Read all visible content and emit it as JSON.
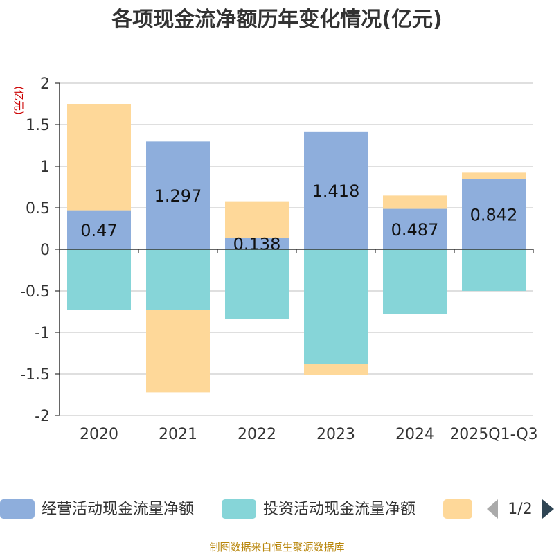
{
  "chart_data": {
    "type": "bar",
    "stacked": true,
    "title": "各项现金流净额历年变化情况(亿元)",
    "unit_label": "(亿元)",
    "categories": [
      "2020",
      "2021",
      "2022",
      "2023",
      "2024",
      "2025Q1-Q3"
    ],
    "ylim": [
      -2,
      2
    ],
    "yticks": [
      2,
      1.5,
      1,
      0.5,
      0,
      -0.5,
      -1,
      -1.5,
      -2
    ],
    "grid": true,
    "legend_position": "bottom",
    "series": [
      {
        "name": "经营活动现金流量净额",
        "color": "#8eaedc",
        "values": [
          0.47,
          1.297,
          0.138,
          1.418,
          0.487,
          0.842
        ],
        "labels": [
          "0.47",
          "1.297",
          "0.138",
          "1.418",
          "0.487",
          "0.842"
        ]
      },
      {
        "name": "投资活动现金流量净额",
        "color": "#86d5d8",
        "values": [
          -0.73,
          -0.73,
          -0.84,
          -1.38,
          -0.78,
          -0.5
        ]
      },
      {
        "color": "#fed899",
        "values": [
          1.28,
          -0.99,
          0.44,
          -0.13,
          0.16,
          0.08
        ]
      }
    ]
  },
  "legend": {
    "page": "1/2",
    "prev_icon": "triangle-left-icon",
    "next_icon": "triangle-right-icon"
  },
  "source": "制图数据来自恒生聚源数据库"
}
